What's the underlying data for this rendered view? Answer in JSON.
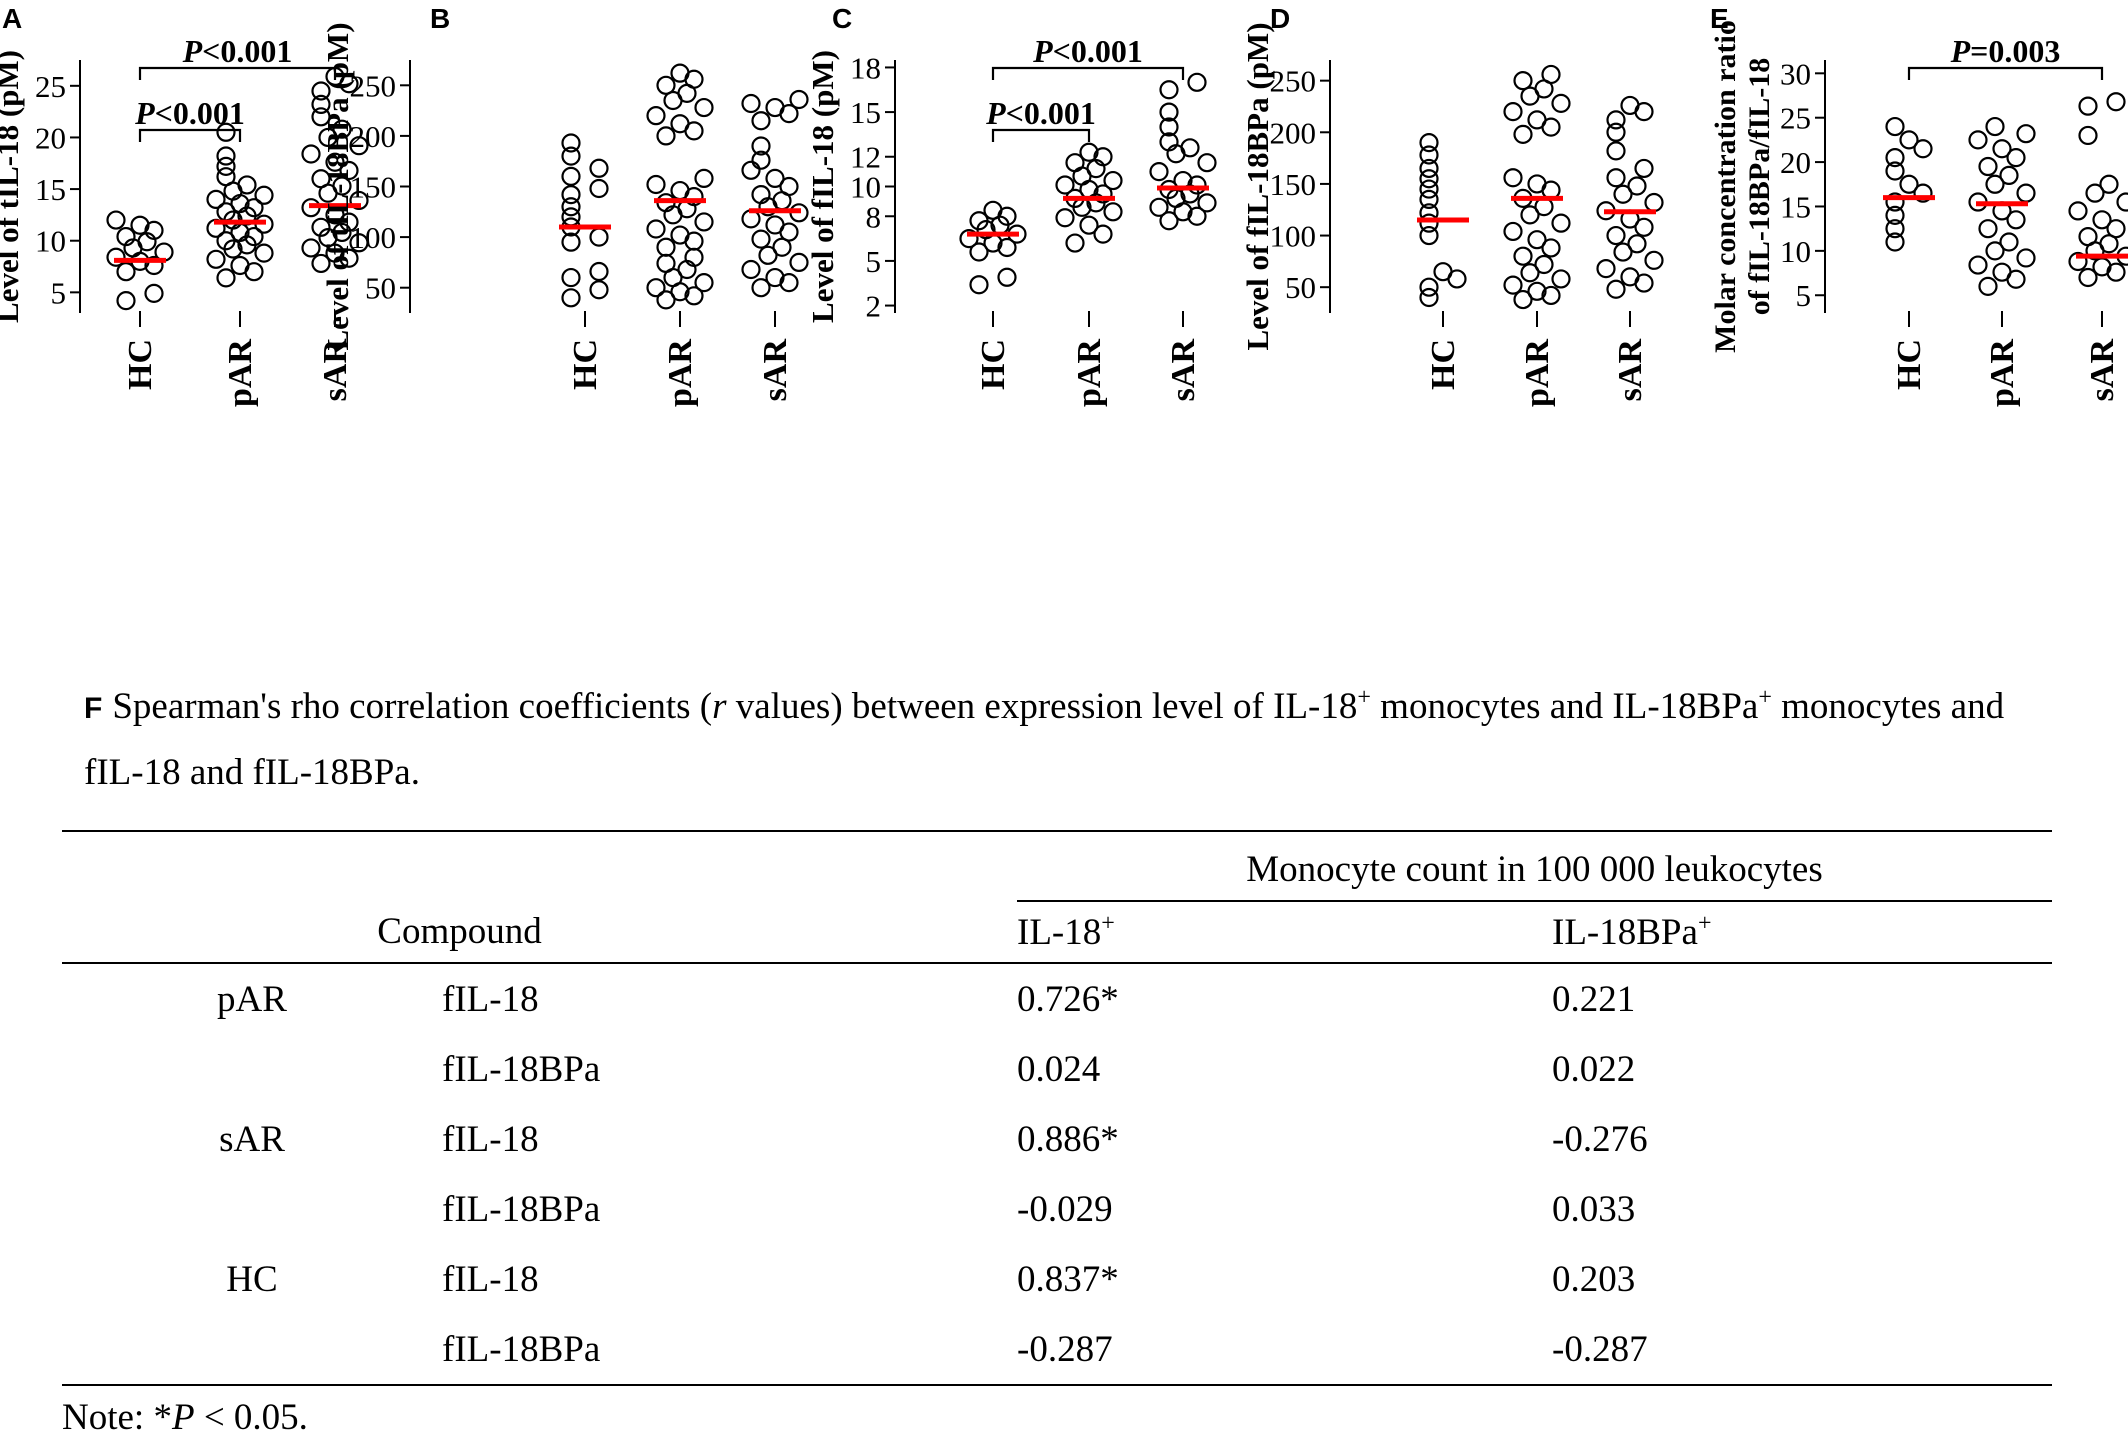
{
  "chart_data": [
    {
      "panel": "A",
      "type": "scatter",
      "ylabel": "Level of tIL-18 (pM)",
      "categories": [
        "HC",
        "pAR",
        "sAR"
      ],
      "ylim": [
        3,
        27.5
      ],
      "yticks": [
        5,
        10,
        15,
        20,
        25
      ],
      "ytick_labels": [
        "5",
        "10",
        "15",
        "20",
        "25"
      ],
      "medians": [
        8.1,
        11.8,
        13.4
      ],
      "points": [
        [
          4.2,
          4.9,
          7.0,
          7.6,
          8.0,
          8.4,
          8.9,
          9.3,
          9.9,
          10.4,
          11.0,
          11.5,
          12.0
        ],
        [
          6.4,
          7.0,
          7.6,
          8.2,
          8.8,
          9.2,
          9.6,
          10.0,
          10.4,
          10.8,
          11.2,
          11.6,
          12.0,
          12.4,
          12.8,
          13.2,
          13.6,
          14.0,
          14.4,
          14.8,
          15.4,
          16.2,
          17.2,
          18.2,
          20.5
        ],
        [
          7.8,
          8.3,
          8.8,
          9.3,
          9.8,
          10.3,
          10.8,
          11.3,
          11.8,
          12.5,
          13.2,
          13.9,
          14.6,
          15.3,
          16.0,
          16.8,
          17.6,
          18.4,
          19.2,
          20.0,
          20.8,
          22.0,
          23.2,
          24.5,
          25.2,
          25.9
        ]
      ],
      "comparisons": [
        {
          "groups": [
            "HC",
            "pAR"
          ],
          "label": "P<0.001"
        },
        {
          "groups": [
            "HC",
            "sAR"
          ],
          "label": "P<0.001"
        }
      ]
    },
    {
      "panel": "B",
      "type": "scatter",
      "ylabel": "Level of tIL-18BPa (pM)",
      "categories": [
        "HC",
        "pAR",
        "sAR"
      ],
      "ylim": [
        25,
        275
      ],
      "yticks": [
        50,
        100,
        150,
        200,
        250
      ],
      "ytick_labels": [
        "50",
        "100",
        "150",
        "200",
        "250"
      ],
      "medians": [
        110,
        136,
        126
      ],
      "points": [
        [
          40,
          48,
          60,
          66,
          95,
          100,
          110,
          120,
          130,
          142,
          148,
          160,
          168,
          180,
          193
        ],
        [
          38,
          42,
          46,
          50,
          55,
          60,
          68,
          74,
          80,
          90,
          96,
          102,
          108,
          115,
          122,
          128,
          134,
          140,
          146,
          152,
          158,
          200,
          205,
          212,
          220,
          228,
          235,
          242,
          250,
          256,
          262
        ],
        [
          50,
          55,
          60,
          68,
          75,
          82,
          90,
          98,
          105,
          112,
          118,
          124,
          130,
          136,
          142,
          150,
          158,
          166,
          176,
          190,
          215,
          222,
          228,
          232,
          236
        ]
      ]
    },
    {
      "panel": "C",
      "type": "scatter",
      "ylabel": "Level of fIL-18 (pM)",
      "categories": [
        "HC",
        "pAR",
        "sAR"
      ],
      "ylim": [
        1.5,
        18.5
      ],
      "yticks": [
        2,
        5,
        8,
        10,
        12,
        15,
        18
      ],
      "ytick_labels": [
        "2",
        "5",
        "8",
        "10",
        "12",
        "15",
        "18"
      ],
      "medians": [
        6.8,
        9.2,
        9.9
      ],
      "points": [
        [
          3.4,
          3.9,
          5.6,
          5.9,
          6.2,
          6.5,
          6.8,
          7.1,
          7.4,
          7.7,
          8.0,
          8.4
        ],
        [
          6.2,
          6.8,
          7.4,
          7.9,
          8.3,
          8.6,
          8.9,
          9.2,
          9.5,
          9.8,
          10.1,
          10.4,
          10.7,
          11.2,
          11.6,
          12.0,
          12.3
        ],
        [
          7.7,
          8.0,
          8.3,
          8.6,
          8.9,
          9.2,
          9.5,
          9.8,
          10.1,
          10.4,
          11.0,
          11.6,
          12.2,
          12.6,
          13.0,
          14.0,
          15.0,
          16.5,
          17.0
        ]
      ],
      "comparisons": [
        {
          "groups": [
            "HC",
            "pAR"
          ],
          "label": "P<0.001"
        },
        {
          "groups": [
            "HC",
            "sAR"
          ],
          "label": "P<0.001"
        }
      ]
    },
    {
      "panel": "D",
      "type": "scatter",
      "ylabel": "Level of fIL-18BPa (pM)",
      "categories": [
        "HC",
        "pAR",
        "sAR"
      ],
      "ylim": [
        25,
        270
      ],
      "yticks": [
        50,
        100,
        150,
        200,
        250
      ],
      "ytick_labels": [
        "50",
        "100",
        "150",
        "200",
        "250"
      ],
      "medians": [
        115,
        136,
        123
      ],
      "points": [
        [
          40,
          50,
          58,
          65,
          100,
          112,
          122,
          135,
          145,
          155,
          165,
          178,
          190
        ],
        [
          38,
          42,
          46,
          52,
          58,
          64,
          72,
          80,
          88,
          96,
          104,
          112,
          120,
          128,
          136,
          144,
          150,
          156,
          198,
          205,
          212,
          220,
          228,
          235,
          242,
          250,
          256
        ],
        [
          48,
          54,
          60,
          68,
          76,
          84,
          92,
          100,
          108,
          116,
          124,
          132,
          140,
          148,
          156,
          165,
          182,
          200,
          212,
          220,
          226
        ]
      ]
    },
    {
      "panel": "E",
      "type": "scatter",
      "ylabel": "Molar concentration ratio of fIL-18BPa/fIL-18",
      "categories": [
        "HC",
        "pAR",
        "sAR"
      ],
      "ylim": [
        3,
        31.5
      ],
      "yticks": [
        5,
        10,
        15,
        20,
        25,
        30
      ],
      "ytick_labels": [
        "5",
        "10",
        "15",
        "20",
        "25",
        "30"
      ],
      "medians": [
        16.0,
        15.3,
        9.4
      ],
      "points": [
        [
          11.0,
          12.5,
          14.0,
          15.5,
          16.5,
          17.5,
          19.0,
          20.5,
          21.5,
          22.5,
          24.0
        ],
        [
          6.0,
          6.8,
          7.6,
          8.4,
          9.2,
          10.0,
          11.0,
          12.5,
          13.5,
          14.5,
          15.5,
          16.5,
          17.5,
          18.5,
          19.5,
          20.5,
          21.5,
          22.5,
          23.2,
          24.0
        ],
        [
          7.0,
          7.6,
          8.2,
          8.8,
          9.4,
          10.0,
          10.8,
          11.6,
          12.5,
          13.5,
          14.5,
          15.5,
          16.5,
          17.5,
          23.0,
          26.3,
          26.8
        ]
      ],
      "comparisons": [
        {
          "groups": [
            "HC",
            "sAR"
          ],
          "label": "P=0.003"
        }
      ]
    }
  ],
  "table": {
    "panel_label": "F",
    "caption_a": "Spearman's rho correlation coefficients (",
    "caption_r": "r",
    "caption_b": " values) between expression level of IL-18",
    "caption_sup1": "+",
    "caption_c": " monocytes and IL-18BPa",
    "caption_sup2": "+",
    "caption_d": " monocytes and fIL-18 and fIL-18BPa.",
    "span_header": "Monocyte count in 100 000 leukocytes",
    "compound_header": "Compound",
    "col1": "IL-18",
    "col1_sup": "+",
    "col2": "IL-18BPa",
    "col2_sup": "+",
    "rows": [
      {
        "group": "pAR",
        "compound": "fIL-18",
        "v1": "0.726*",
        "v2": "0.221"
      },
      {
        "group": "",
        "compound": "fIL-18BPa",
        "v1": "0.024",
        "v2": "0.022"
      },
      {
        "group": "sAR",
        "compound": "fIL-18",
        "v1": "0.886*",
        "v2": "-0.276"
      },
      {
        "group": "",
        "compound": "fIL-18BPa",
        "v1": "-0.029",
        "v2": "0.033"
      },
      {
        "group": "HC",
        "compound": "fIL-18",
        "v1": "0.837*",
        "v2": "0.203"
      },
      {
        "group": "",
        "compound": "fIL-18BPa",
        "v1": "-0.287",
        "v2": "-0.287"
      }
    ],
    "note_a": "Note: *",
    "note_p": "P",
    "note_b": " < 0.05."
  },
  "colors": {
    "median": "#ff0000",
    "ink": "#000000"
  }
}
